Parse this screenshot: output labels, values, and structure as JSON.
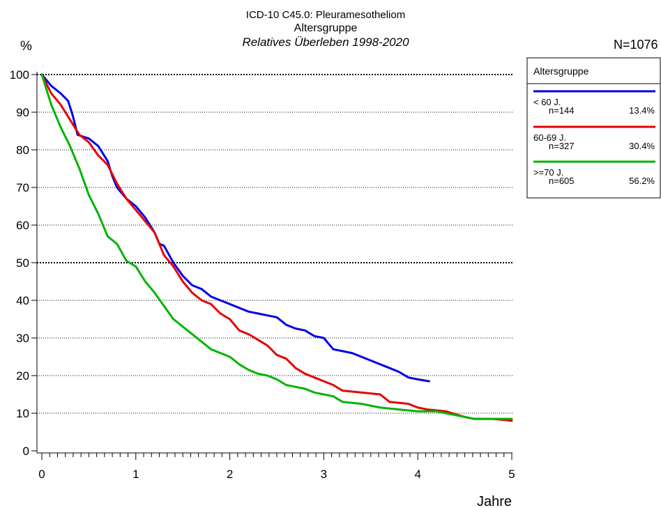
{
  "chart_data": {
    "type": "line",
    "title_lines": [
      "ICD-10 C45.0: Pleuramesotheliom",
      "Altersgruppe",
      "Relatives Überleben 1998-2020"
    ],
    "ylabel": "%",
    "xlabel": "Jahre",
    "n_total": "N=1076",
    "xlim": [
      0,
      5
    ],
    "ylim": [
      0,
      100
    ],
    "x_ticks": [
      "0",
      "1",
      "2",
      "3",
      "4",
      "5"
    ],
    "y_ticks": [
      "0",
      "10",
      "20",
      "30",
      "40",
      "50",
      "60",
      "70",
      "80",
      "90",
      "100"
    ],
    "grid": "horizontal dotted",
    "legend": {
      "title": "Altersgruppe",
      "placement": "right",
      "entries": [
        {
          "label": "< 60 J.",
          "n": "n=144",
          "pct": "13.4%",
          "color": "#0000e6"
        },
        {
          "label": "60-69 J.",
          "n": "n=327",
          "pct": "30.4%",
          "color": "#e60000"
        },
        {
          "label": ">=70 J.",
          "n": "n=605",
          "pct": "56.2%",
          "color": "#00b400"
        }
      ]
    },
    "series": [
      {
        "name": "< 60 J.",
        "color": "#0000e6",
        "x": [
          0,
          0.1,
          0.2,
          0.28,
          0.33,
          0.38,
          0.5,
          0.6,
          0.7,
          0.75,
          0.8,
          0.9,
          1.0,
          1.1,
          1.2,
          1.25,
          1.3,
          1.4,
          1.5,
          1.6,
          1.7,
          1.8,
          1.9,
          2.0,
          2.1,
          2.2,
          2.3,
          2.5,
          2.6,
          2.7,
          2.8,
          2.9,
          3.0,
          3.1,
          3.3,
          3.5,
          3.6,
          3.7,
          3.8,
          3.9,
          4.0,
          4.12
        ],
        "y": [
          100,
          97,
          95,
          93,
          89,
          84,
          83,
          81,
          77,
          73,
          70,
          67,
          65,
          62,
          58,
          55,
          54.5,
          50,
          46.5,
          44,
          43,
          41,
          40,
          39,
          38,
          37,
          36.5,
          35.5,
          33.5,
          32.5,
          32,
          30.5,
          30,
          27,
          26,
          24,
          23,
          22,
          21,
          19.5,
          19,
          18.5
        ]
      },
      {
        "name": "60-69 J.",
        "color": "#e60000",
        "x": [
          0,
          0.1,
          0.2,
          0.3,
          0.4,
          0.5,
          0.6,
          0.7,
          0.8,
          0.9,
          1.0,
          1.1,
          1.2,
          1.3,
          1.4,
          1.5,
          1.6,
          1.7,
          1.8,
          1.9,
          2.0,
          2.1,
          2.2,
          2.3,
          2.4,
          2.5,
          2.6,
          2.7,
          2.8,
          2.9,
          3.0,
          3.1,
          3.2,
          3.4,
          3.6,
          3.7,
          3.9,
          4.0,
          4.1,
          4.3,
          4.5,
          4.6,
          4.8,
          5.0
        ],
        "y": [
          100,
          95,
          92,
          88,
          84,
          82,
          78.5,
          76,
          71,
          67,
          64,
          61,
          58,
          52,
          49,
          45,
          42,
          40,
          39,
          36.5,
          35,
          32,
          31,
          29.5,
          28,
          25.5,
          24.5,
          22,
          20.5,
          19.5,
          18.5,
          17.5,
          16,
          15.5,
          15,
          13,
          12.5,
          11.5,
          11,
          10.5,
          9,
          8.5,
          8.5,
          8
        ]
      },
      {
        "name": ">=70 J.",
        "color": "#00b400",
        "x": [
          0,
          0.1,
          0.2,
          0.3,
          0.4,
          0.5,
          0.6,
          0.7,
          0.8,
          0.9,
          1.0,
          1.1,
          1.2,
          1.3,
          1.4,
          1.5,
          1.6,
          1.7,
          1.8,
          1.9,
          2.0,
          2.1,
          2.2,
          2.3,
          2.4,
          2.5,
          2.6,
          2.7,
          2.8,
          2.9,
          3.0,
          3.1,
          3.2,
          3.4,
          3.6,
          3.8,
          4.0,
          4.2,
          4.4,
          4.6,
          4.8,
          5.0
        ],
        "y": [
          100,
          92,
          86,
          81,
          75,
          68,
          63,
          57,
          55,
          50.5,
          49,
          45,
          42,
          38.5,
          35,
          33,
          31,
          29,
          27,
          26,
          25,
          23,
          21.5,
          20.5,
          20,
          19,
          17.5,
          17,
          16.5,
          15.5,
          15,
          14.5,
          13,
          12.5,
          11.5,
          11,
          10.5,
          10.5,
          9.5,
          8.5,
          8.5,
          8.5
        ]
      }
    ]
  }
}
